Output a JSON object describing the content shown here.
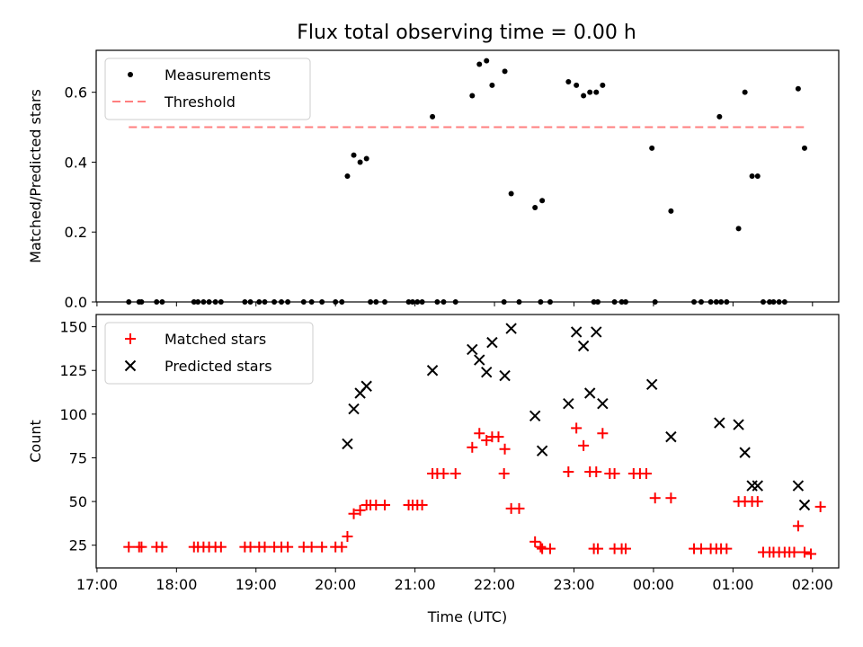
{
  "title": "Flux total observing time = 0.00 h",
  "chart_data": [
    {
      "type": "scatter",
      "xlabel": "",
      "ylabel": "Matched/Predicted stars",
      "x_unit": "hours since 17:00 UTC",
      "xlim": [
        -0.01,
        9.33
      ],
      "ylim": [
        0,
        0.72
      ],
      "yticks": [
        0.0,
        0.2,
        0.4,
        0.6
      ],
      "ytick_labels": [
        "0.0",
        "0.2",
        "0.4",
        "0.6"
      ],
      "legend": {
        "placement": "top-left",
        "entries": [
          "Measurements",
          "Threshold"
        ]
      },
      "threshold": {
        "name": "Threshold",
        "value": 0.5,
        "x_range": [
          0.4,
          8.9
        ],
        "color": "#ff7f7f"
      },
      "series": [
        {
          "name": "Measurements",
          "color": "#000000",
          "points": [
            [
              0.4,
              0
            ],
            [
              0.53,
              0
            ],
            [
              0.56,
              0
            ],
            [
              0.75,
              0
            ],
            [
              0.82,
              0
            ],
            [
              1.22,
              0
            ],
            [
              1.27,
              0
            ],
            [
              1.34,
              0
            ],
            [
              1.41,
              0
            ],
            [
              1.49,
              0
            ],
            [
              1.56,
              0
            ],
            [
              1.86,
              0
            ],
            [
              1.93,
              0
            ],
            [
              2.04,
              0
            ],
            [
              2.11,
              0
            ],
            [
              2.23,
              0
            ],
            [
              2.32,
              0
            ],
            [
              2.4,
              0
            ],
            [
              2.6,
              0
            ],
            [
              2.7,
              0
            ],
            [
              2.83,
              0
            ],
            [
              3.0,
              0
            ],
            [
              3.08,
              0
            ],
            [
              3.44,
              0
            ],
            [
              3.51,
              0
            ],
            [
              3.62,
              0
            ],
            [
              3.92,
              0
            ],
            [
              3.97,
              0
            ],
            [
              4.03,
              0
            ],
            [
              4.09,
              0
            ],
            [
              4.28,
              0
            ],
            [
              4.36,
              0
            ],
            [
              4.51,
              0
            ],
            [
              5.12,
              0
            ],
            [
              5.31,
              0
            ],
            [
              5.58,
              0
            ],
            [
              5.7,
              0
            ],
            [
              6.25,
              0
            ],
            [
              6.3,
              0
            ],
            [
              6.51,
              0
            ],
            [
              6.6,
              0
            ],
            [
              6.65,
              0
            ],
            [
              7.02,
              0
            ],
            [
              7.51,
              0
            ],
            [
              7.6,
              0
            ],
            [
              7.72,
              0
            ],
            [
              7.79,
              0
            ],
            [
              7.85,
              0
            ],
            [
              7.92,
              0
            ],
            [
              8.38,
              0
            ],
            [
              8.46,
              0
            ],
            [
              8.51,
              0
            ],
            [
              8.58,
              0
            ],
            [
              8.65,
              0
            ],
            [
              3.15,
              0.36
            ],
            [
              3.23,
              0.42
            ],
            [
              3.31,
              0.4
            ],
            [
              3.39,
              0.41
            ],
            [
              4.22,
              0.53
            ],
            [
              4.72,
              0.59
            ],
            [
              4.81,
              0.68
            ],
            [
              4.9,
              0.69
            ],
            [
              4.97,
              0.62
            ],
            [
              5.13,
              0.66
            ],
            [
              5.21,
              0.31
            ],
            [
              5.51,
              0.27
            ],
            [
              5.6,
              0.29
            ],
            [
              5.93,
              0.63
            ],
            [
              6.03,
              0.62
            ],
            [
              6.12,
              0.59
            ],
            [
              6.2,
              0.6
            ],
            [
              6.28,
              0.6
            ],
            [
              6.36,
              0.62
            ],
            [
              6.98,
              0.44
            ],
            [
              7.22,
              0.26
            ],
            [
              8.07,
              0.21
            ],
            [
              8.15,
              0.6
            ],
            [
              8.24,
              0.36
            ],
            [
              8.31,
              0.36
            ],
            [
              8.82,
              0.61
            ],
            [
              8.9,
              0.44
            ],
            [
              7.83,
              0.53
            ]
          ]
        }
      ]
    },
    {
      "type": "scatter",
      "xlabel": "Time (UTC)",
      "ylabel": "Count",
      "x_unit": "hours since 17:00 UTC",
      "xlim": [
        -0.01,
        9.33
      ],
      "ylim": [
        12,
        157
      ],
      "xticks": [
        0,
        1,
        2,
        3,
        4,
        5,
        6,
        7,
        8,
        9
      ],
      "xtick_labels": [
        "17:00",
        "18:00",
        "19:00",
        "20:00",
        "21:00",
        "22:00",
        "23:00",
        "00:00",
        "01:00",
        "02:00"
      ],
      "yticks": [
        25,
        50,
        75,
        100,
        125,
        150
      ],
      "ytick_labels": [
        "25",
        "50",
        "75",
        "100",
        "125",
        "150"
      ],
      "legend": {
        "placement": "top-left",
        "entries": [
          "Matched stars",
          "Predicted stars"
        ]
      },
      "series": [
        {
          "name": "Matched stars",
          "marker": "plus",
          "color": "#ff0000",
          "points": [
            [
              0.4,
              24
            ],
            [
              0.53,
              24
            ],
            [
              0.56,
              24
            ],
            [
              0.75,
              24
            ],
            [
              0.82,
              24
            ],
            [
              1.22,
              24
            ],
            [
              1.27,
              24
            ],
            [
              1.34,
              24
            ],
            [
              1.41,
              24
            ],
            [
              1.49,
              24
            ],
            [
              1.56,
              24
            ],
            [
              1.86,
              24
            ],
            [
              1.93,
              24
            ],
            [
              2.04,
              24
            ],
            [
              2.11,
              24
            ],
            [
              2.23,
              24
            ],
            [
              2.32,
              24
            ],
            [
              2.4,
              24
            ],
            [
              2.6,
              24
            ],
            [
              2.7,
              24
            ],
            [
              2.83,
              24
            ],
            [
              3.0,
              24
            ],
            [
              3.08,
              24
            ],
            [
              3.15,
              30
            ],
            [
              3.23,
              43
            ],
            [
              3.31,
              45
            ],
            [
              3.39,
              48
            ],
            [
              3.44,
              48
            ],
            [
              3.51,
              48
            ],
            [
              3.62,
              48
            ],
            [
              3.92,
              48
            ],
            [
              3.97,
              48
            ],
            [
              4.03,
              48
            ],
            [
              4.09,
              48
            ],
            [
              4.22,
              66
            ],
            [
              4.28,
              66
            ],
            [
              4.36,
              66
            ],
            [
              4.51,
              66
            ],
            [
              4.72,
              81
            ],
            [
              4.81,
              89
            ],
            [
              4.9,
              85
            ],
            [
              4.97,
              87
            ],
            [
              5.05,
              87
            ],
            [
              5.13,
              80
            ],
            [
              5.12,
              66
            ],
            [
              5.31,
              46
            ],
            [
              5.58,
              24
            ],
            [
              5.7,
              23
            ],
            [
              6.25,
              23
            ],
            [
              6.3,
              23
            ],
            [
              6.51,
              23
            ],
            [
              6.6,
              23
            ],
            [
              6.65,
              23
            ],
            [
              7.02,
              52
            ],
            [
              7.22,
              52
            ],
            [
              5.21,
              46
            ],
            [
              5.51,
              27
            ],
            [
              5.6,
              23
            ],
            [
              5.93,
              67
            ],
            [
              6.03,
              92
            ],
            [
              6.12,
              82
            ],
            [
              6.2,
              67
            ],
            [
              6.36,
              89
            ],
            [
              6.28,
              67
            ],
            [
              6.51,
              66
            ],
            [
              6.45,
              66
            ],
            [
              6.75,
              66
            ],
            [
              6.83,
              66
            ],
            [
              6.91,
              66
            ],
            [
              7.51,
              23
            ],
            [
              7.6,
              23
            ],
            [
              7.72,
              23
            ],
            [
              7.79,
              23
            ],
            [
              7.85,
              23
            ],
            [
              7.92,
              23
            ],
            [
              8.07,
              50
            ],
            [
              8.15,
              50
            ],
            [
              8.24,
              50
            ],
            [
              8.31,
              50
            ],
            [
              8.38,
              21
            ],
            [
              8.46,
              21
            ],
            [
              8.51,
              21
            ],
            [
              8.58,
              21
            ],
            [
              8.65,
              21
            ],
            [
              8.71,
              21
            ],
            [
              8.77,
              21
            ],
            [
              8.82,
              36
            ],
            [
              8.9,
              21
            ],
            [
              8.98,
              20
            ],
            [
              9.1,
              47
            ]
          ]
        },
        {
          "name": "Predicted stars",
          "marker": "x",
          "color": "#000000",
          "points": [
            [
              3.15,
              83
            ],
            [
              3.23,
              103
            ],
            [
              3.31,
              112
            ],
            [
              3.39,
              116
            ],
            [
              4.22,
              125
            ],
            [
              4.72,
              137
            ],
            [
              4.81,
              131
            ],
            [
              4.9,
              124
            ],
            [
              4.97,
              141
            ],
            [
              5.13,
              122
            ],
            [
              5.21,
              149
            ],
            [
              5.51,
              99
            ],
            [
              5.6,
              79
            ],
            [
              5.93,
              106
            ],
            [
              6.03,
              147
            ],
            [
              6.12,
              139
            ],
            [
              6.2,
              112
            ],
            [
              6.28,
              147
            ],
            [
              6.36,
              106
            ],
            [
              6.98,
              117
            ],
            [
              7.22,
              87
            ],
            [
              7.83,
              95
            ],
            [
              8.07,
              94
            ],
            [
              8.15,
              78
            ],
            [
              8.24,
              59
            ],
            [
              8.31,
              59
            ],
            [
              8.82,
              59
            ],
            [
              8.9,
              48
            ]
          ]
        }
      ]
    }
  ]
}
